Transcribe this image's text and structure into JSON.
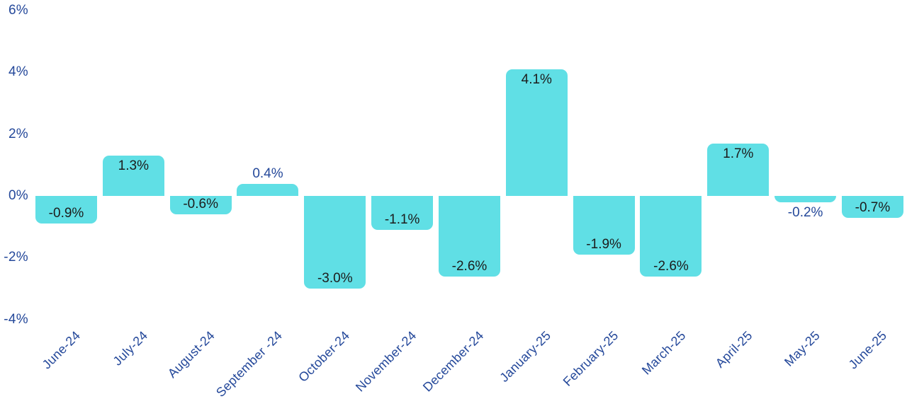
{
  "chart_data": {
    "type": "bar",
    "title": "",
    "xlabel": "",
    "ylabel": "",
    "categories": [
      "June-24",
      "July-24",
      "August-24",
      "September -24",
      "October-24",
      "November-24",
      "December-24",
      "January-25",
      "February-25",
      "March-25",
      "April-25",
      "May-25",
      "June-25"
    ],
    "values": [
      -0.9,
      1.3,
      -0.6,
      0.4,
      -3.0,
      -1.1,
      -2.6,
      4.1,
      -1.9,
      -2.6,
      1.7,
      -0.2,
      -0.7
    ],
    "value_labels": [
      "-0.9%",
      "1.3%",
      "-0.6%",
      "0.4%",
      "-3.0%",
      "-1.1%",
      "-2.6%",
      "4.1%",
      "-1.9%",
      "-2.6%",
      "1.7%",
      "-0.2%",
      "-0.7%"
    ],
    "y_ticks": [
      {
        "value": 6,
        "label": "6%"
      },
      {
        "value": 4,
        "label": "4%"
      },
      {
        "value": 2,
        "label": "2%"
      },
      {
        "value": 0,
        "label": "0%"
      },
      {
        "value": -2,
        "label": "-2%"
      },
      {
        "value": -4,
        "label": "-4%"
      }
    ],
    "ylim": [
      -4,
      6
    ],
    "grid": false,
    "legend": "none",
    "colors": {
      "bar": "#60DFE5",
      "axis_text": "#24489A",
      "label_inside": "#1C1C1C",
      "label_outside": "#24489A",
      "background": "#FFFFFF"
    }
  }
}
